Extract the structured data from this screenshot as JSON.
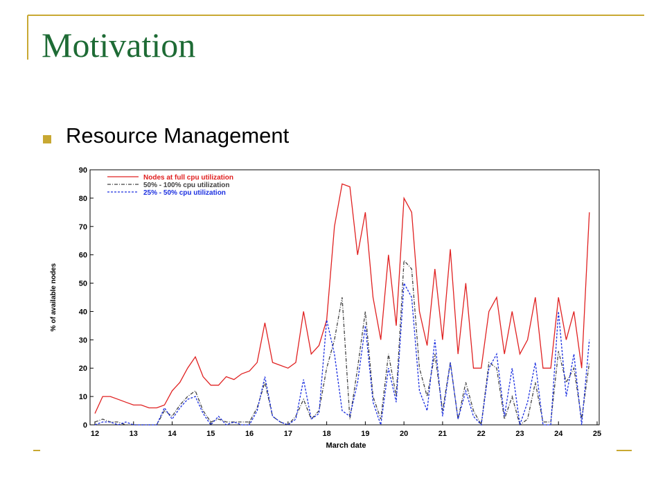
{
  "slide": {
    "title": "Motivation",
    "bullets": [
      "Resource Management"
    ]
  },
  "chart_data": {
    "type": "line",
    "xlabel": "March date",
    "ylabel": "% of available nodes",
    "x": [
      12.0,
      12.2,
      12.4,
      12.6,
      12.8,
      13.0,
      13.2,
      13.4,
      13.6,
      13.8,
      14.0,
      14.2,
      14.4,
      14.6,
      14.8,
      15.0,
      15.2,
      15.4,
      15.6,
      15.8,
      16.0,
      16.2,
      16.4,
      16.6,
      16.8,
      17.0,
      17.2,
      17.4,
      17.6,
      17.8,
      18.0,
      18.2,
      18.4,
      18.6,
      18.8,
      19.0,
      19.2,
      19.4,
      19.6,
      19.8,
      20.0,
      20.2,
      20.4,
      20.6,
      20.8,
      21.0,
      21.2,
      21.4,
      21.6,
      21.8,
      22.0,
      22.2,
      22.4,
      22.6,
      22.8,
      23.0,
      23.2,
      23.4,
      23.6,
      23.8,
      24.0,
      24.2,
      24.4,
      24.6,
      24.8
    ],
    "series": [
      {
        "name": "Nodes at full cpu utilization",
        "color": "#e02020",
        "style": "solid",
        "values": [
          4,
          10,
          10,
          9,
          8,
          7,
          7,
          6,
          6,
          7,
          12,
          15,
          20,
          24,
          17,
          14,
          14,
          17,
          16,
          18,
          19,
          22,
          36,
          22,
          21,
          20,
          22,
          40,
          25,
          28,
          37,
          70,
          85,
          84,
          60,
          75,
          45,
          30,
          60,
          35,
          80,
          75,
          40,
          28,
          55,
          30,
          62,
          25,
          50,
          20,
          20,
          40,
          45,
          25,
          40,
          25,
          30,
          45,
          20,
          20,
          45,
          30,
          40,
          20,
          75
        ]
      },
      {
        "name": "50% - 100% cpu utilization",
        "color": "#404040",
        "style": "dashdot",
        "values": [
          1,
          2,
          1,
          1,
          0,
          0,
          0,
          0,
          0,
          5,
          3,
          7,
          10,
          12,
          5,
          1,
          2,
          1,
          1,
          1,
          1,
          6,
          15,
          3,
          1,
          0,
          3,
          9,
          2,
          5,
          20,
          30,
          45,
          2,
          20,
          40,
          10,
          2,
          25,
          10,
          58,
          55,
          20,
          10,
          25,
          5,
          22,
          2,
          15,
          5,
          0,
          22,
          20,
          2,
          10,
          0,
          2,
          15,
          1,
          1,
          26,
          15,
          20,
          2,
          22
        ]
      },
      {
        "name": "25% - 50% cpu utilization",
        "color": "#1a2ee0",
        "style": "dashed",
        "values": [
          0,
          1,
          1,
          0,
          1,
          0,
          0,
          0,
          0,
          6,
          2,
          6,
          9,
          10,
          4,
          0,
          3,
          0,
          1,
          0,
          0,
          5,
          17,
          3,
          1,
          0,
          2,
          16,
          2,
          4,
          37,
          25,
          5,
          3,
          15,
          35,
          8,
          0,
          20,
          8,
          50,
          45,
          12,
          5,
          30,
          3,
          22,
          2,
          12,
          3,
          0,
          20,
          25,
          3,
          20,
          0,
          8,
          22,
          0,
          0,
          40,
          10,
          25,
          0,
          30
        ]
      }
    ],
    "xlim": [
      12,
      25
    ],
    "xticks": [
      12,
      13,
      14,
      15,
      16,
      17,
      18,
      19,
      20,
      21,
      22,
      23,
      24,
      25
    ],
    "ylim": [
      0,
      90
    ],
    "yticks": [
      0,
      10,
      20,
      30,
      40,
      50,
      60,
      70,
      80,
      90
    ],
    "legend": "upper left",
    "grid": false
  }
}
